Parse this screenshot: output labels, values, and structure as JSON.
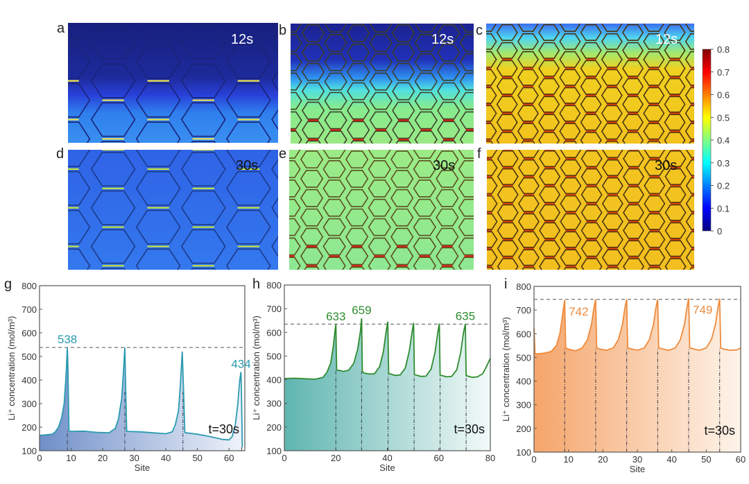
{
  "figure": {
    "panels_top": [
      {
        "letter": "a",
        "time": "12s",
        "time_color": "#ffffff",
        "scheme": "a"
      },
      {
        "letter": "b",
        "time": "12s",
        "time_color": "#ffffff",
        "scheme": "b"
      },
      {
        "letter": "c",
        "time": "12s",
        "time_color": "#ffffff",
        "scheme": "c"
      },
      {
        "letter": "d",
        "time": "30s",
        "time_color": "#111111",
        "scheme": "d"
      },
      {
        "letter": "e",
        "time": "30s",
        "time_color": "#111111",
        "scheme": "e"
      },
      {
        "letter": "f",
        "time": "30s",
        "time_color": "#111111",
        "scheme": "f"
      }
    ],
    "colorbar": {
      "ticks": [
        "0",
        "0.1",
        "0.2",
        "0.3",
        "0.4",
        "0.5",
        "0.6",
        "0.7",
        "0.8"
      ],
      "min": 0,
      "max": 0.8,
      "colormap": "jet"
    }
  },
  "chart_data": [
    {
      "type": "area",
      "panel": "g",
      "title": "",
      "xlabel": "Site",
      "ylabel": "Li+ concentration (mol/m3)",
      "xlim": [
        0,
        65
      ],
      "ylim": [
        100,
        800
      ],
      "xticks": [
        0,
        10,
        20,
        30,
        40,
        50,
        60
      ],
      "yticks": [
        100,
        200,
        300,
        400,
        500,
        600,
        700,
        800
      ],
      "color": "#2a9bb0",
      "fill_gradient": [
        "#6f8fc8",
        "#eef2fa"
      ],
      "series": [
        {
          "name": "t=30s",
          "x": [
            0,
            2,
            4,
            5,
            6,
            7,
            7.8,
            8.4,
            8.8,
            9.0,
            9.3,
            9.6,
            10,
            14,
            18,
            22,
            24,
            25,
            26,
            26.6,
            27.0,
            27.3,
            27.6,
            28,
            32,
            36,
            40,
            42,
            43,
            44,
            44.6,
            45.2,
            45.6,
            46,
            46.4,
            50,
            54,
            58,
            60,
            61,
            62,
            62.8,
            63.4,
            63.8,
            64.0,
            64.2
          ],
          "y": [
            165,
            167,
            170,
            180,
            200,
            240,
            300,
            420,
            538,
            450,
            185,
            183,
            182,
            183,
            178,
            176,
            195,
            235,
            320,
            440,
            538,
            350,
            183,
            182,
            180,
            176,
            172,
            180,
            210,
            270,
            380,
            520,
            350,
            178,
            176,
            170,
            160,
            148,
            146,
            160,
            210,
            300,
            400,
            434,
            300,
            115
          ]
        }
      ],
      "peaks": [
        {
          "label": "538",
          "x": 8.8,
          "y": 538
        },
        {
          "label": "434",
          "x": 63.8,
          "y": 434
        }
      ],
      "reference_line": 538,
      "vlines": [
        8.8,
        27.0,
        45.4,
        64.0
      ],
      "annotation": "t=30s"
    },
    {
      "type": "area",
      "panel": "h",
      "title": "",
      "xlabel": "Site",
      "ylabel": "Li+ concentration (mol/m3)",
      "xlim": [
        0,
        80
      ],
      "ylim": [
        100,
        800
      ],
      "xticks": [
        0,
        20,
        40,
        60,
        80
      ],
      "yticks": [
        100,
        200,
        300,
        400,
        500,
        600,
        700,
        800
      ],
      "color": "#2e8b2e",
      "fill_gradient": [
        "#5fb5b0",
        "#f2faf8"
      ],
      "series": [
        {
          "name": "t=30s",
          "x": [
            0,
            4,
            8,
            12,
            15,
            16.5,
            18,
            19,
            19.6,
            20.0,
            20.3,
            21,
            23,
            25,
            27,
            28.5,
            29.5,
            30.0,
            30.3,
            31,
            33,
            35,
            37,
            38.5,
            39.5,
            40.2,
            40.5,
            41,
            43,
            45,
            47,
            48.5,
            49.6,
            50.2,
            50.5,
            51,
            53,
            55,
            57,
            58.5,
            59.6,
            60.2,
            60.5,
            61,
            63,
            65,
            67,
            68.5,
            69.6,
            70.3,
            70.6,
            71,
            73,
            75,
            77,
            78.5,
            80
          ],
          "y": [
            405,
            406,
            404,
            402,
            410,
            430,
            470,
            540,
            600,
            633,
            440,
            440,
            435,
            440,
            470,
            530,
            600,
            659,
            435,
            428,
            424,
            425,
            455,
            520,
            600,
            645,
            425,
            425,
            418,
            420,
            450,
            520,
            600,
            640,
            422,
            420,
            414,
            415,
            445,
            515,
            600,
            637,
            420,
            418,
            412,
            414,
            442,
            515,
            600,
            635,
            418,
            416,
            410,
            412,
            425,
            455,
            490
          ]
        }
      ],
      "peaks": [
        {
          "label": "633",
          "x": 20.0,
          "y": 633
        },
        {
          "label": "659",
          "x": 30.0,
          "y": 659
        },
        {
          "label": "635",
          "x": 70.3,
          "y": 635
        }
      ],
      "reference_line": 635,
      "vlines": [
        20,
        30,
        40.3,
        50.4,
        60.5,
        70.6
      ],
      "annotation": "t=30s"
    },
    {
      "type": "area",
      "panel": "i",
      "title": "",
      "xlabel": "Site",
      "ylabel": "Li+ concentration (mol/m3)",
      "xlim": [
        0,
        60
      ],
      "ylim": [
        100,
        800
      ],
      "xticks": [
        0,
        10,
        20,
        30,
        40,
        50,
        60
      ],
      "yticks": [
        100,
        200,
        300,
        400,
        500,
        600,
        700,
        800
      ],
      "color": "#ee8a3c",
      "fill_gradient": [
        "#f5a56a",
        "#fdf4ea"
      ],
      "series": [
        {
          "name": "t=30s",
          "x": [
            0,
            0.3,
            1,
            3,
            5,
            6.5,
            7.5,
            8.3,
            8.9,
            9.2,
            10,
            12,
            14,
            15.5,
            16.7,
            17.4,
            17.9,
            18.2,
            19,
            21,
            23,
            24.5,
            25.7,
            26.4,
            26.9,
            27.2,
            28,
            30,
            32,
            33.5,
            34.7,
            35.4,
            35.9,
            36.2,
            37,
            39,
            41,
            42.5,
            43.7,
            44.4,
            44.9,
            45.2,
            46,
            48,
            50,
            51.5,
            52.7,
            53.4,
            53.9,
            54.2,
            55,
            57,
            59,
            60
          ],
          "y": [
            625,
            515,
            515,
            518,
            525,
            550,
            600,
            680,
            742,
            540,
            535,
            528,
            540,
            575,
            640,
            710,
            745,
            540,
            536,
            530,
            540,
            575,
            640,
            710,
            745,
            540,
            537,
            530,
            540,
            575,
            640,
            710,
            745,
            540,
            537,
            530,
            540,
            575,
            640,
            710,
            749,
            540,
            537,
            530,
            540,
            575,
            640,
            710,
            748,
            540,
            535,
            530,
            532,
            540
          ]
        }
      ],
      "peaks": [
        {
          "label": "742",
          "x": 8.9,
          "y": 742
        },
        {
          "label": "749",
          "x": 44.9,
          "y": 749
        }
      ],
      "reference_line": 745,
      "vlines": [
        8.9,
        17.9,
        26.9,
        35.9,
        44.9,
        53.9
      ],
      "annotation": "t=30s"
    }
  ]
}
